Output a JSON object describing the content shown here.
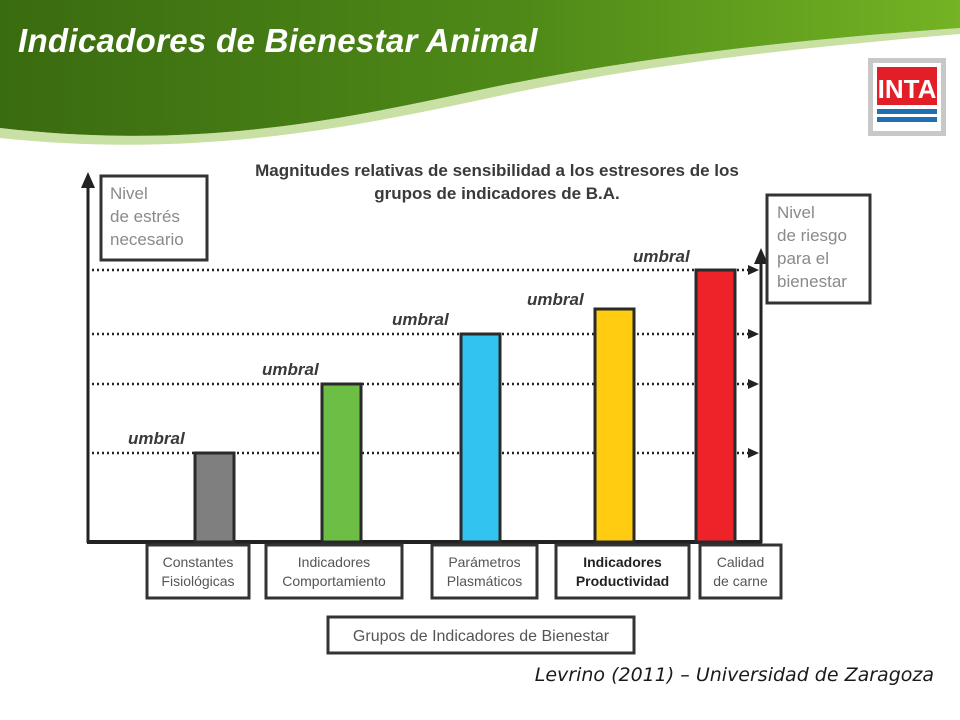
{
  "slide": {
    "title": "Indicadores de Bienestar Animal",
    "credit": "Levrino (2011) – Universidad de Zaragoza",
    "logo_text": "INTA",
    "colors": {
      "banner_dark": "#3d6e12",
      "banner_light": "#6aa51f",
      "logo_red": "#e21e26",
      "logo_blue": "#1f6fb5"
    }
  },
  "diagram": {
    "heading_line1": "Magnitudes relativas de sensibilidad a los estresores de los",
    "heading_line2": "grupos de indicadores de B.A.",
    "left_box": [
      "Nivel",
      "de estrés",
      "necesario"
    ],
    "right_box": [
      "Nivel",
      "de riesgo",
      "para el",
      "bienestar"
    ],
    "axis_label": "Grupos de Indicadores de Bienestar",
    "threshold_label": "umbral",
    "groups": [
      {
        "line1": "Constantes",
        "line2": "Fisiológicas",
        "color": "#7f7f80",
        "level": 1
      },
      {
        "line1": "Indicadores",
        "line2": "Comportamiento",
        "color": "#6cbe45",
        "level": 2
      },
      {
        "line1": "Parámetros",
        "line2": "Plasmáticos",
        "color": "#33c3f0",
        "level": 3
      },
      {
        "line1": "Indicadores",
        "line2": "Productividad",
        "color": "#ffcc11",
        "level": 4,
        "bold": true
      },
      {
        "line1": "Calidad",
        "line2": "de carne",
        "color": "#ee2229",
        "level": 5
      }
    ]
  }
}
